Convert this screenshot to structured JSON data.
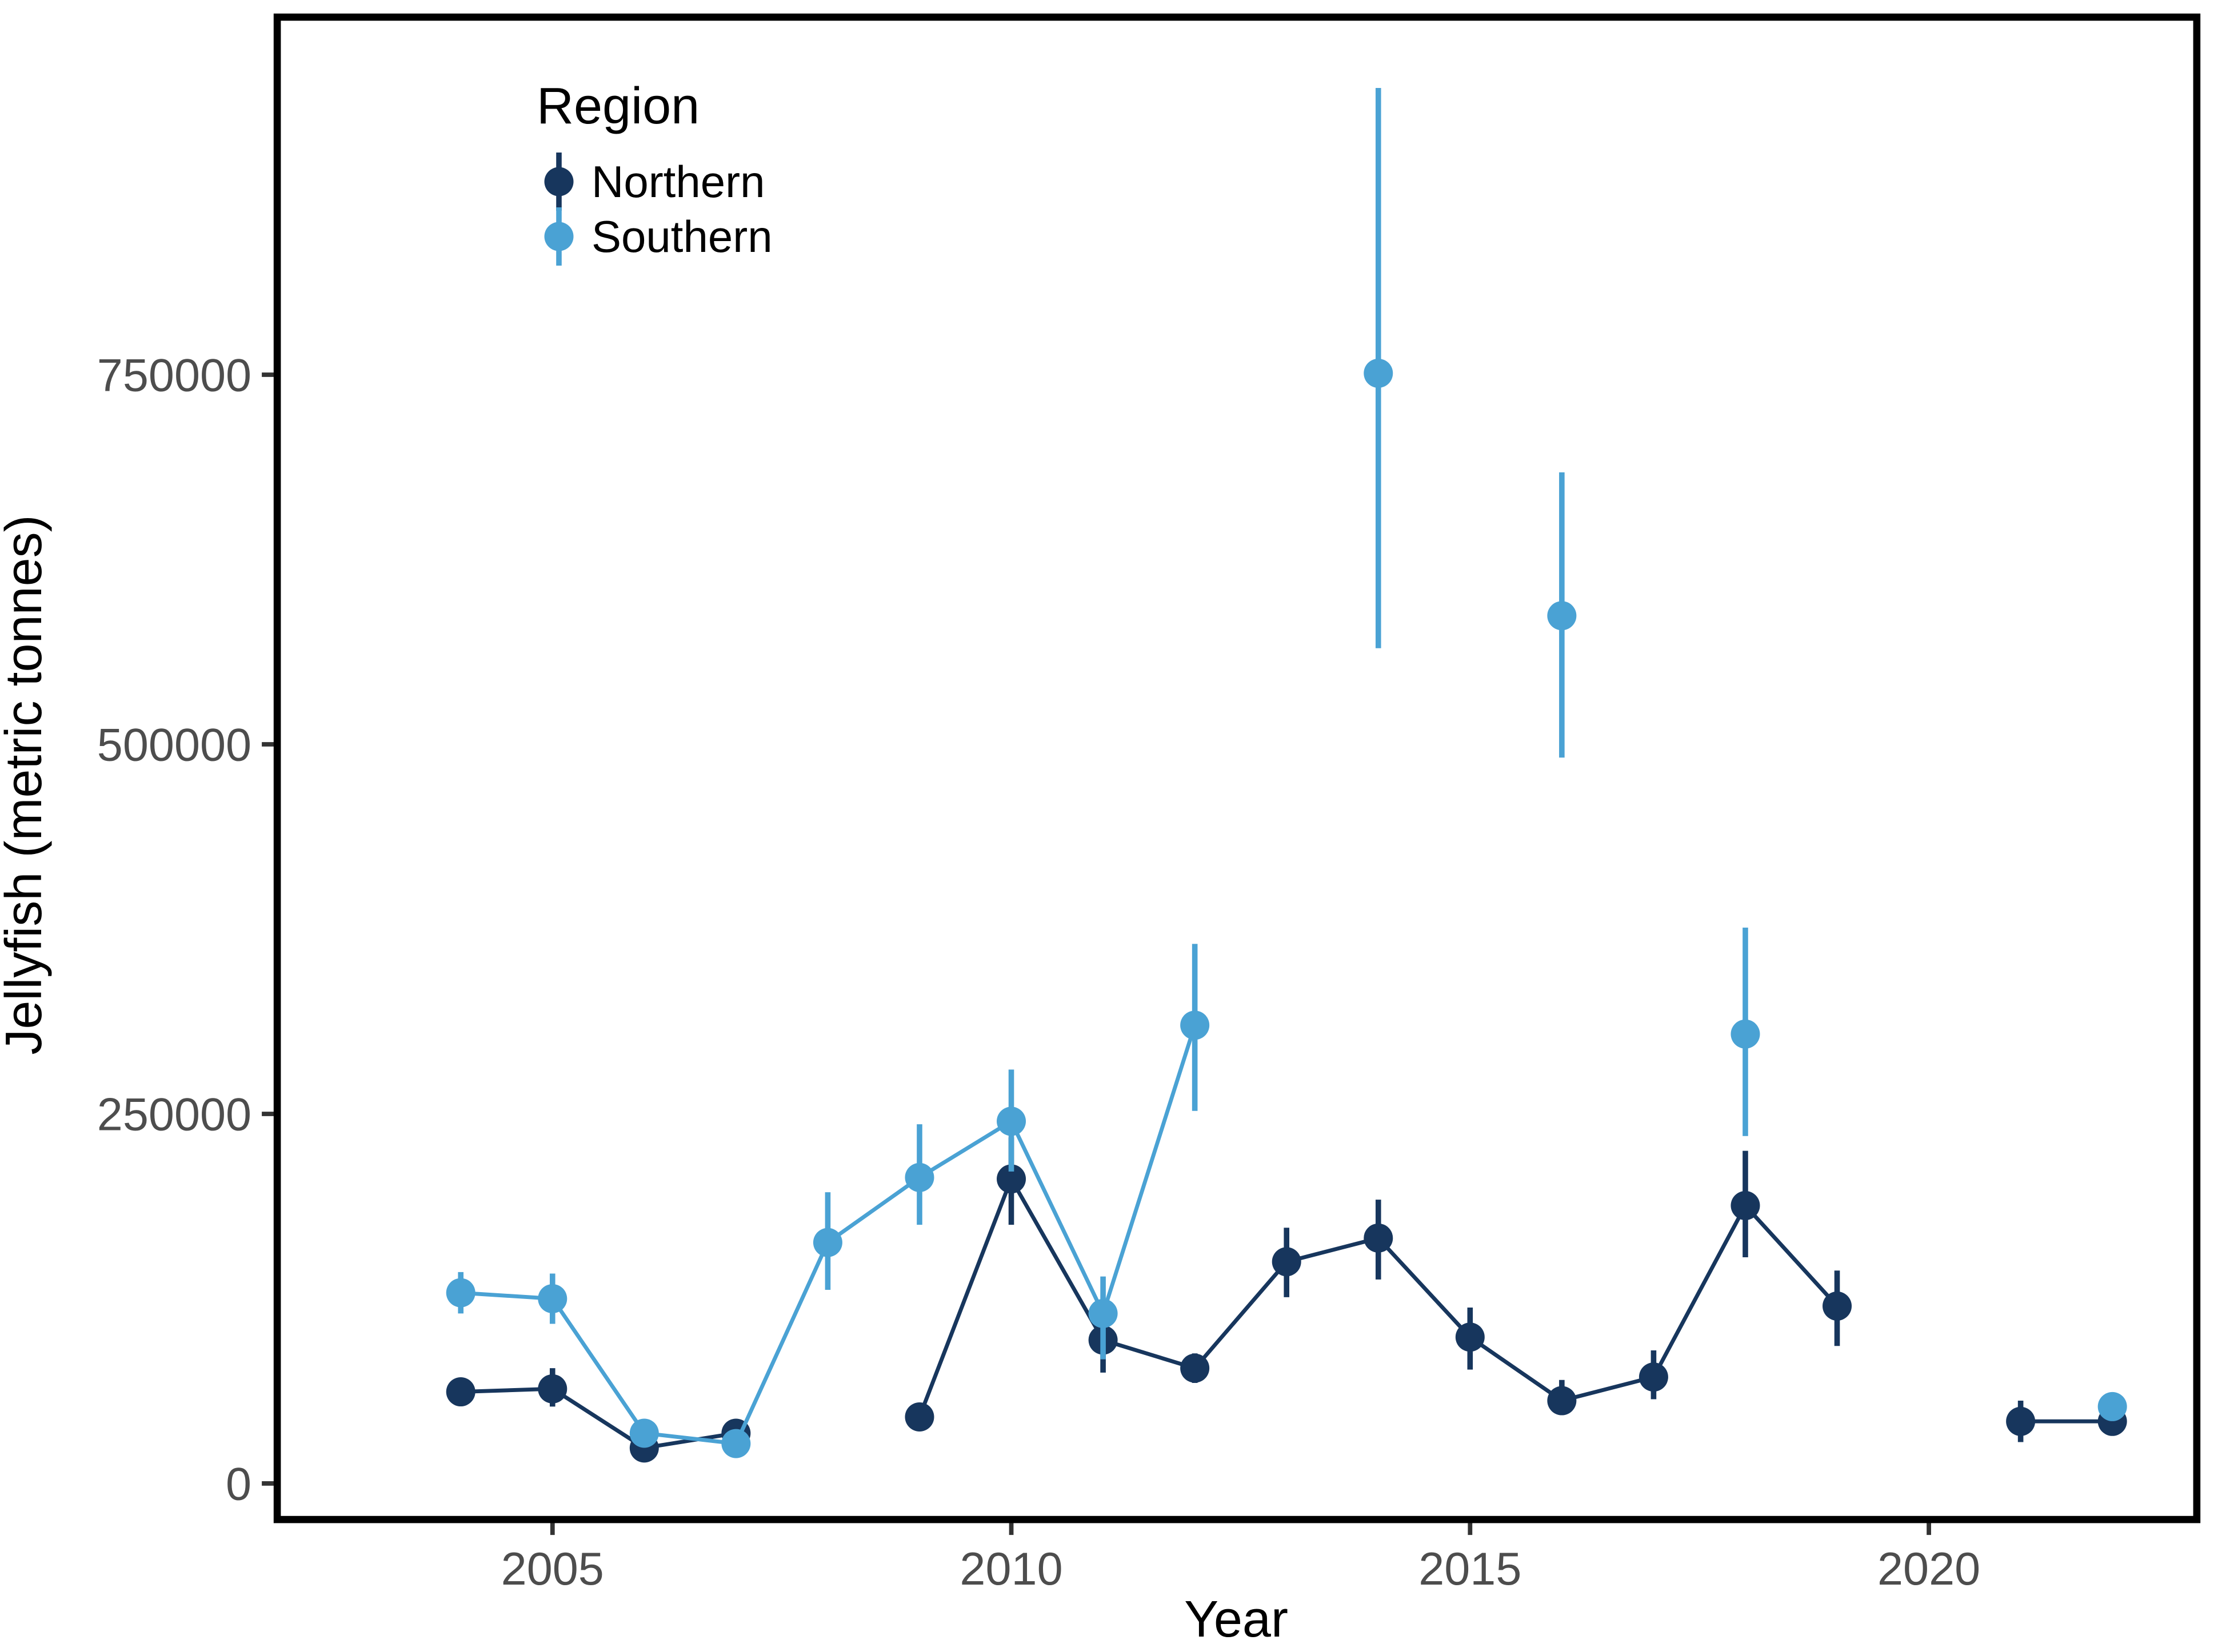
{
  "figure": {
    "background": "#ffffff",
    "panel_border_color": "#000000"
  },
  "chart_data": {
    "type": "line",
    "title": "",
    "xlabel": "Year",
    "ylabel": "Jellyfish (metric tonnes)",
    "x_ticks": [
      2005,
      2010,
      2015,
      2020
    ],
    "y_ticks": [
      0,
      250000,
      500000,
      750000
    ],
    "x_range": [
      2002.0,
      2022.92
    ],
    "y_range": [
      -24400,
      991900
    ],
    "grid": "off",
    "error_bars": true,
    "legend": {
      "title": "Region",
      "position": "inside-top-left",
      "entries": [
        "Northern",
        "Southern"
      ]
    },
    "series": [
      {
        "name": "Northern",
        "color": "#17365D",
        "marker": "circle",
        "line_groups": [
          [
            2004,
            2005,
            2006,
            2007
          ],
          [
            2009,
            2010,
            2011,
            2012,
            2013,
            2014,
            2015,
            2016,
            2017,
            2018,
            2019
          ],
          [
            2021,
            2022
          ]
        ],
        "points": [
          {
            "year": 2004,
            "value": 62000,
            "lo": 57000,
            "hi": 67000
          },
          {
            "year": 2005,
            "value": 64000,
            "lo": 52000,
            "hi": 78000
          },
          {
            "year": 2006,
            "value": 24000,
            "lo": 20000,
            "hi": 28000
          },
          {
            "year": 2007,
            "value": 34000,
            "lo": 29000,
            "hi": 39000
          },
          {
            "year": 2009,
            "value": 45000,
            "lo": 40000,
            "hi": 50000
          },
          {
            "year": 2010,
            "value": 206000,
            "lo": 175000,
            "hi": 234000
          },
          {
            "year": 2011,
            "value": 97000,
            "lo": 75000,
            "hi": 119000
          },
          {
            "year": 2012,
            "value": 78000,
            "lo": 68000,
            "hi": 88000
          },
          {
            "year": 2013,
            "value": 150000,
            "lo": 126000,
            "hi": 173000
          },
          {
            "year": 2014,
            "value": 166000,
            "lo": 138000,
            "hi": 192000
          },
          {
            "year": 2015,
            "value": 99000,
            "lo": 77000,
            "hi": 119000
          },
          {
            "year": 2016,
            "value": 56000,
            "lo": 47000,
            "hi": 70000
          },
          {
            "year": 2017,
            "value": 72000,
            "lo": 57000,
            "hi": 90000
          },
          {
            "year": 2018,
            "value": 188000,
            "lo": 153000,
            "hi": 225000
          },
          {
            "year": 2019,
            "value": 120000,
            "lo": 93000,
            "hi": 144000
          },
          {
            "year": 2021,
            "value": 42000,
            "lo": 28000,
            "hi": 56000
          },
          {
            "year": 2022,
            "value": 42000,
            "lo": 36000,
            "hi": 48000
          }
        ]
      },
      {
        "name": "Southern",
        "color": "#4AA2D4",
        "marker": "circle",
        "line_groups": [
          [
            2004,
            2005,
            2006,
            2007,
            2008,
            2009,
            2010,
            2011,
            2012
          ]
        ],
        "points": [
          {
            "year": 2004,
            "value": 129000,
            "lo": 115000,
            "hi": 143000
          },
          {
            "year": 2005,
            "value": 125000,
            "lo": 108000,
            "hi": 142000
          },
          {
            "year": 2006,
            "value": 34000,
            "lo": 28000,
            "hi": 40000
          },
          {
            "year": 2007,
            "value": 27000,
            "lo": 22000,
            "hi": 32000
          },
          {
            "year": 2008,
            "value": 163000,
            "lo": 131000,
            "hi": 197000
          },
          {
            "year": 2009,
            "value": 207000,
            "lo": 175000,
            "hi": 243000
          },
          {
            "year": 2010,
            "value": 245000,
            "lo": 211000,
            "hi": 280000
          },
          {
            "year": 2011,
            "value": 115000,
            "lo": 84000,
            "hi": 140000
          },
          {
            "year": 2012,
            "value": 310000,
            "lo": 252000,
            "hi": 365000
          },
          {
            "year": 2014,
            "value": 751000,
            "lo": 565000,
            "hi": 944000
          },
          {
            "year": 2016,
            "value": 587000,
            "lo": 491000,
            "hi": 684000
          },
          {
            "year": 2018,
            "value": 304000,
            "lo": 235000,
            "hi": 376000
          },
          {
            "year": 2022,
            "value": 52000,
            "lo": 44000,
            "hi": 61000
          }
        ]
      }
    ]
  }
}
